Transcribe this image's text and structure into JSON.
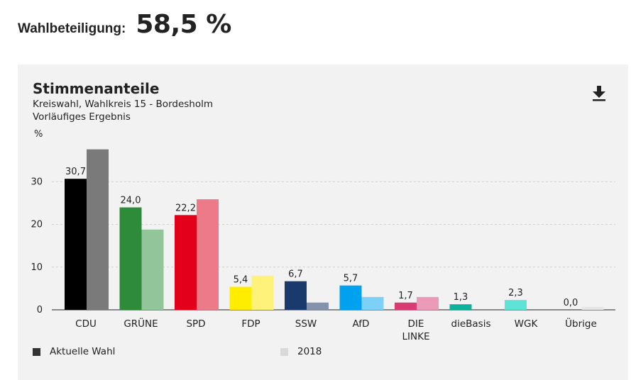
{
  "turnout": {
    "label": "Wahlbeteiligung:",
    "value": "58,5 %"
  },
  "card": {
    "title": "Stimmenanteile",
    "subtitle": "Kreiswahl, Wahlkreis 15 - Bordesholm",
    "subtitle2": "Vorläufiges Ergebnis",
    "unit": "%",
    "download_icon": "download-icon"
  },
  "legend": {
    "current": "Aktuelle Wahl",
    "previous": "2018",
    "current_color": "#333333",
    "previous_color": "#d9d9d9"
  },
  "chart_data": {
    "type": "bar",
    "title": "Stimmenanteile",
    "ylabel": "%",
    "ylim": [
      0,
      38
    ],
    "yticks": [
      "0",
      "10",
      "20",
      "30"
    ],
    "ytick_values": [
      0,
      10,
      20,
      30
    ],
    "grid": true,
    "legend_position": "bottom",
    "categories": [
      "CDU",
      "GRÜNE",
      "SPD",
      "FDP",
      "SSW",
      "AfD",
      "DIE LINKE",
      "dieBasis",
      "WGK",
      "Übrige"
    ],
    "category_lines": [
      [
        "CDU"
      ],
      [
        "GRÜNE"
      ],
      [
        "SPD"
      ],
      [
        "FDP"
      ],
      [
        "SSW"
      ],
      [
        "AfD"
      ],
      [
        "DIE",
        "LINKE"
      ],
      [
        "dieBasis"
      ],
      [
        "WGK"
      ],
      [
        "Übrige"
      ]
    ],
    "series": [
      {
        "name": "Aktuelle Wahl",
        "values": [
          30.7,
          24.0,
          22.2,
          5.4,
          6.7,
          5.7,
          1.7,
          1.3,
          2.3,
          0.0
        ],
        "labels": [
          "30,7",
          "24,0",
          "22,2",
          "5,4",
          "6,7",
          "5,7",
          "1,7",
          "1,3",
          "2,3",
          "0,0"
        ],
        "colors": [
          "#000000",
          "#2e8b3a",
          "#e3001b",
          "#ffed00",
          "#1a3a6e",
          "#00a1ef",
          "#d73c73",
          "#0fb19a",
          "#5ee3d6",
          "#cccccc"
        ]
      },
      {
        "name": "2018",
        "values": [
          37.6,
          18.8,
          25.9,
          8.0,
          1.7,
          3.0,
          3.0,
          0,
          0,
          0.7
        ],
        "colors": [
          "#7a7a7a",
          "#93c59b",
          "#ed7a89",
          "#fff27a",
          "#8492ae",
          "#7dd0f7",
          "#eb9ab8",
          "#8bd8cc",
          "#b3f1eb",
          "#e6e6e6"
        ]
      }
    ]
  }
}
